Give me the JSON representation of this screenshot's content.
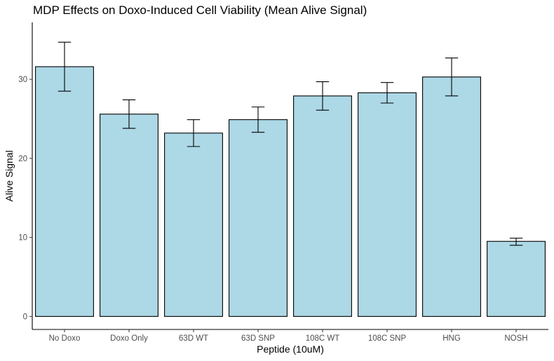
{
  "chart_data": {
    "type": "bar",
    "title": "MDP Effects on Doxo-Induced Cell Viability (Mean Alive Signal)",
    "xlabel": "Peptide (10uM)",
    "ylabel": "Alive Signal",
    "categories": [
      "No Doxo",
      "Doxo Only",
      "63D WT",
      "63D SNP",
      "108C WT",
      "108C SNP",
      "HNG",
      "NOSH"
    ],
    "values": [
      31.6,
      25.6,
      23.2,
      24.9,
      27.9,
      28.3,
      30.3,
      9.5
    ],
    "error_low": [
      28.5,
      23.8,
      21.5,
      23.3,
      26.1,
      27.0,
      27.9,
      9.0
    ],
    "error_high": [
      34.7,
      27.4,
      24.9,
      26.5,
      29.7,
      29.6,
      32.7,
      9.9
    ],
    "yticks": [
      0,
      10,
      20,
      30
    ],
    "ylim": [
      -1.65,
      37.2
    ],
    "grid": false,
    "legend": "none",
    "bar_fill": "#add8e6",
    "bar_stroke": "#000000",
    "error_bar_color": "#000000",
    "axis_color": "#000000"
  }
}
